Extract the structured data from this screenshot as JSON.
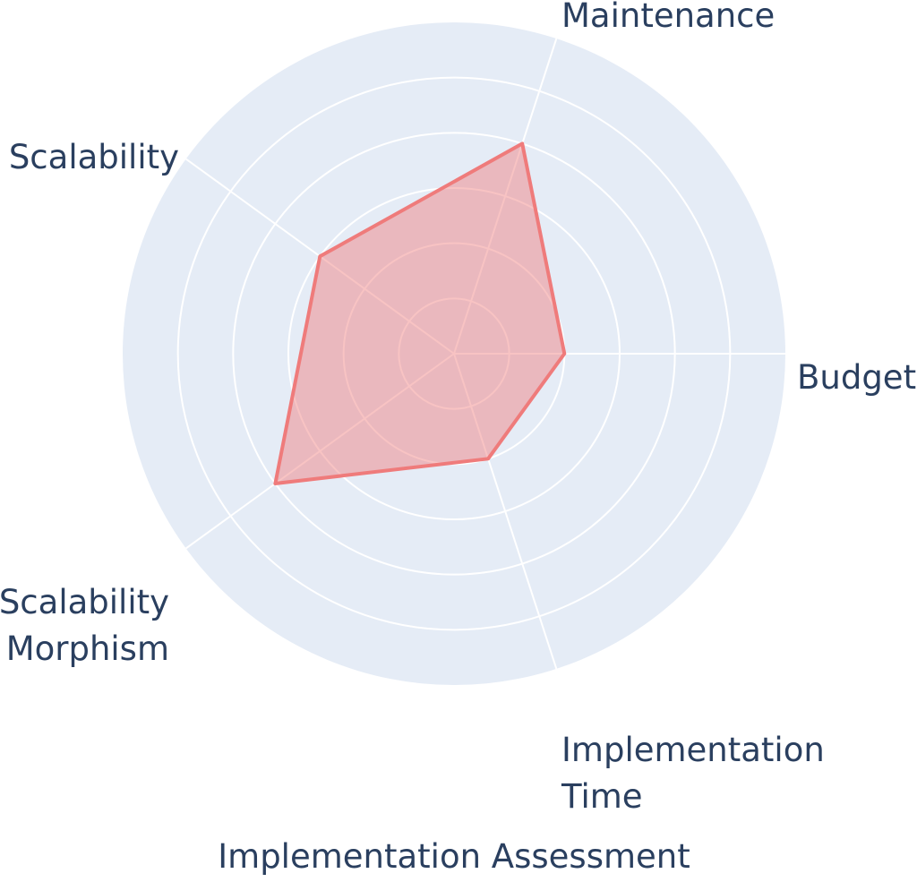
{
  "chart_data": {
    "type": "radar",
    "title": "Implementation Assessment",
    "axes": [
      {
        "key": "budget",
        "lines": [
          "Budget"
        ]
      },
      {
        "key": "maintenance",
        "lines": [
          "Maintenance"
        ]
      },
      {
        "key": "scalability",
        "lines": [
          "Scalability"
        ]
      },
      {
        "key": "scalability_morphism",
        "lines": [
          "Scalability",
          "Morphism"
        ]
      },
      {
        "key": "implementation_time",
        "lines": [
          "Implementation",
          "Time"
        ]
      }
    ],
    "values": [
      2,
      4,
      3,
      4,
      2
    ],
    "rlim": [
      0,
      6
    ],
    "rings": [
      1,
      2,
      3,
      4,
      5,
      6
    ],
    "grid": true,
    "legend": "none",
    "colors": {
      "background": "#e5ecf6",
      "grid": "#ffffff",
      "series_line": "#ef7b7b",
      "series_fill": "#ef7b7b",
      "series_fill_opacity": 0.45,
      "text": "#2a3f5f"
    }
  }
}
